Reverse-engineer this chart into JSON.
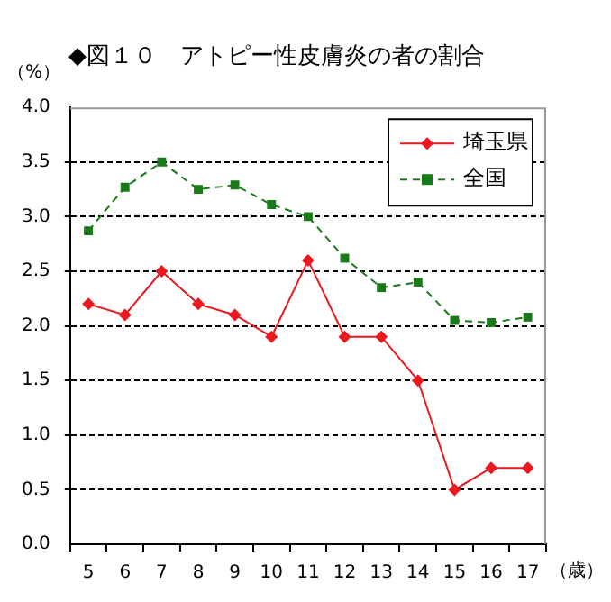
{
  "chart_data": {
    "type": "line",
    "title": "◆図１０　アトピー性皮膚炎の者の割合",
    "xlabel": "（歳）",
    "ylabel": "（%）",
    "categories": [
      "5",
      "6",
      "7",
      "8",
      "9",
      "10",
      "11",
      "12",
      "13",
      "14",
      "15",
      "16",
      "17"
    ],
    "series": [
      {
        "name": "埼玉県",
        "color": "#e8191f",
        "marker": "diamond",
        "line_style": "solid",
        "values": [
          2.2,
          2.1,
          2.5,
          2.2,
          2.1,
          1.9,
          2.6,
          1.9,
          1.9,
          1.5,
          0.5,
          0.7,
          0.7
        ]
      },
      {
        "name": "全国",
        "color": "#1a7a1a",
        "marker": "square",
        "line_style": "dashed",
        "values": [
          2.87,
          3.27,
          3.5,
          3.25,
          3.29,
          3.11,
          3.0,
          2.62,
          2.35,
          2.4,
          2.05,
          2.03,
          2.08
        ]
      }
    ],
    "ylim": [
      0,
      4
    ],
    "yticks": [
      {
        "value": 0,
        "label": "0.0"
      },
      {
        "value": 0.5,
        "label": "0.5"
      },
      {
        "value": 1,
        "label": "1.0"
      },
      {
        "value": 1.5,
        "label": "1.5"
      },
      {
        "value": 2,
        "label": "2.0"
      },
      {
        "value": 2.5,
        "label": "2.5"
      },
      {
        "value": 3,
        "label": "3.0"
      },
      {
        "value": 3.5,
        "label": "3.5"
      },
      {
        "value": 4,
        "label": "4.0"
      }
    ],
    "grid": "y",
    "legend": "top right"
  }
}
